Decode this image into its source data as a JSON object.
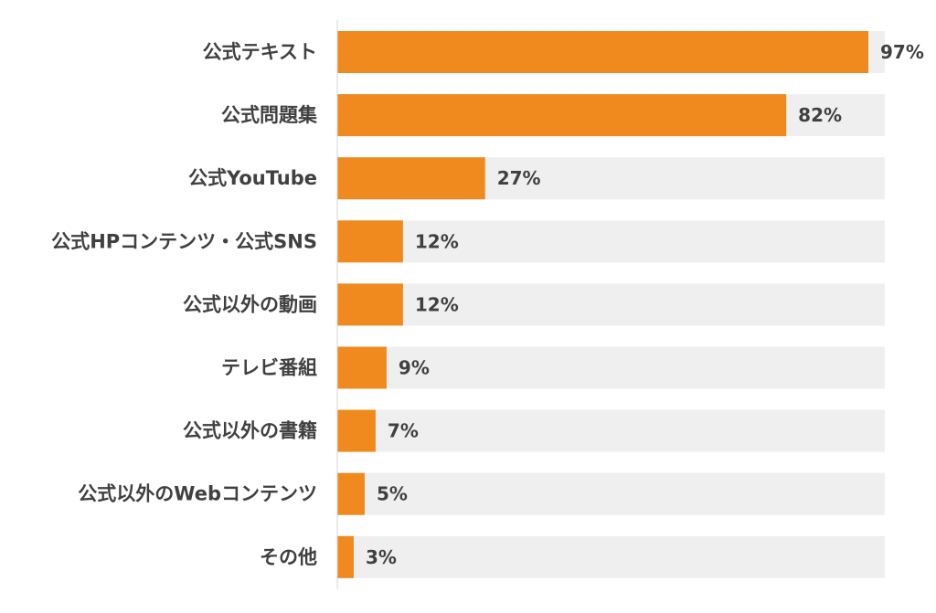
{
  "chart_data": {
    "type": "bar",
    "orientation": "horizontal",
    "title": "",
    "xlabel": "",
    "ylabel": "",
    "xlim": [
      0,
      100
    ],
    "value_suffix": "%",
    "grid": false,
    "legend": "none",
    "categories": [
      "公式テキスト",
      "公式問題集",
      "公式YouTube",
      "公式HPコンテンツ・公式SNS",
      "公式以外の動画",
      "テレビ番組",
      "公式以外の書籍",
      "公式以外のWebコンテンツ",
      "その他"
    ],
    "values": [
      97,
      82,
      27,
      12,
      12,
      9,
      7,
      5,
      3
    ],
    "data_labels": [
      "97%",
      "82%",
      "27%",
      "12%",
      "12%",
      "9%",
      "7%",
      "5%",
      "3%"
    ],
    "colors": {
      "bar": "#F08A1E",
      "track": "#EFEFEF",
      "axis": "#D6D6D6",
      "label_text": "#404040"
    }
  }
}
